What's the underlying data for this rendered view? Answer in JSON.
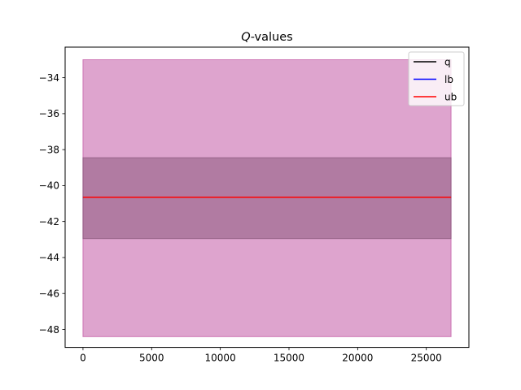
{
  "chart_data": {
    "type": "line",
    "title_italic": "Q",
    "title_rest": "-values",
    "xlabel": "",
    "ylabel": "",
    "xlim": [
      -1300,
      28100
    ],
    "ylim": [
      -49.0,
      -32.3
    ],
    "xticks": [
      0,
      5000,
      10000,
      15000,
      20000,
      25000
    ],
    "xtick_labels": [
      "0",
      "5000",
      "10000",
      "15000",
      "20000",
      "25000"
    ],
    "yticks": [
      -48,
      -46,
      -44,
      -42,
      -40,
      -38,
      -36,
      -34
    ],
    "ytick_labels": [
      "−48",
      "−46",
      "−44",
      "−42",
      "−40",
      "−38",
      "−36",
      "−34"
    ],
    "grid": false,
    "legend_position": "top-right",
    "series": [
      {
        "name": "q",
        "color": "#000000",
        "x": [
          0,
          26800
        ],
        "y": [
          -40.65,
          -40.65
        ]
      },
      {
        "name": "lb",
        "color": "#0000ff",
        "x": [
          0,
          26800
        ],
        "y": [
          -40.65,
          -40.65
        ]
      },
      {
        "name": "ub",
        "color": "#ff0000",
        "x": [
          0,
          26800
        ],
        "y": [
          -40.65,
          -40.65
        ]
      }
    ],
    "bands": [
      {
        "x": [
          0,
          26800
        ],
        "lower": -48.4,
        "upper": -33.0,
        "color": "#c35aa5"
      },
      {
        "x": [
          0,
          26800
        ],
        "lower": -42.95,
        "upper": -38.45,
        "color": "#8c5a7d"
      }
    ]
  }
}
